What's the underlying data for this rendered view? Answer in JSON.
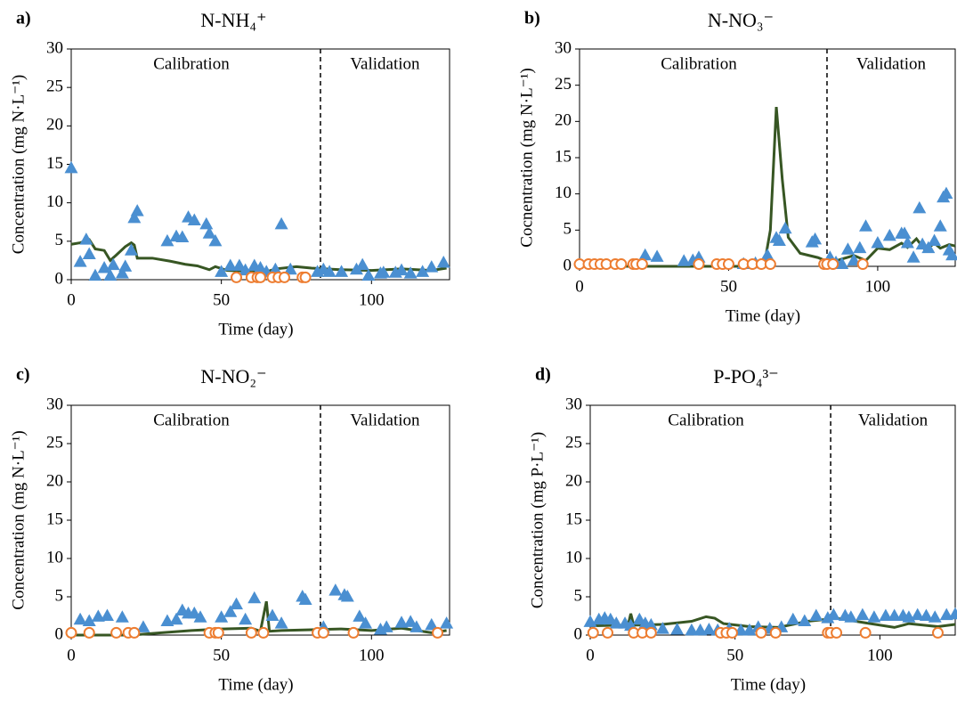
{
  "chart_data": [
    {
      "type": "scatter",
      "panel_label": "a)",
      "title": "N-NH₄⁺",
      "x_label": "Time (day)",
      "y_label": "Concentration (mg N·L⁻¹)",
      "annotations": [
        "Calibration",
        "Validation"
      ],
      "divider_x": 83,
      "xlim": [
        0,
        126
      ],
      "ylim": [
        0,
        30
      ],
      "xticks": [
        0,
        50,
        100
      ],
      "yticks": [
        0,
        5,
        10,
        15,
        20,
        25,
        30
      ],
      "series": [
        {
          "style": "line",
          "color": "#375623",
          "x": [
            0,
            3,
            6,
            8,
            11,
            13,
            15,
            18,
            20,
            21,
            22,
            27,
            33,
            38,
            42,
            46,
            48,
            52,
            60,
            64,
            68,
            75,
            80,
            90,
            100,
            110,
            120,
            125
          ],
          "values": [
            4.6,
            4.8,
            5.2,
            4.0,
            3.8,
            2.5,
            3.2,
            4.3,
            4.8,
            4.5,
            2.8,
            2.8,
            2.4,
            2.0,
            1.8,
            1.3,
            1.7,
            1.2,
            1.1,
            0.9,
            1.4,
            1.7,
            1.5,
            1.3,
            1.2,
            1.4,
            1.2,
            1.5
          ]
        },
        {
          "style": "triangle",
          "color": "#4a8fd1",
          "x": [
            0,
            3,
            5,
            6,
            8,
            11,
            13,
            14,
            17,
            18,
            20,
            21,
            22,
            32,
            35,
            37,
            39,
            41,
            45,
            46,
            48,
            50,
            53,
            56,
            58,
            61,
            63,
            65,
            68,
            70,
            73,
            82,
            84,
            86,
            90,
            95,
            97,
            99,
            103,
            104,
            108,
            110,
            113,
            117,
            120,
            124
          ],
          "values": [
            14.5,
            2.3,
            5.2,
            3.3,
            0.5,
            1.5,
            0.5,
            1.9,
            0.8,
            1.7,
            3.8,
            8,
            8.9,
            5,
            5.6,
            5.5,
            8.1,
            7.7,
            7.2,
            6,
            5,
            1.0,
            1.8,
            1.8,
            1.2,
            1.8,
            1.5,
            1.0,
            1.3,
            7.2,
            1.3,
            1.0,
            1.3,
            1.0,
            1.0,
            1.3,
            1.9,
            0.5,
            0.8,
            0.9,
            0.9,
            1.2,
            0.8,
            1.0,
            1.6,
            2.2
          ]
        },
        {
          "style": "circle",
          "color": "#ed7d31",
          "x": [
            55,
            60,
            62,
            63,
            67,
            69,
            71,
            77,
            78
          ],
          "values": [
            0.3,
            0.3,
            0.3,
            0.3,
            0.3,
            0.3,
            0.3,
            0.3,
            0.3
          ]
        }
      ]
    },
    {
      "type": "scatter",
      "panel_label": "b)",
      "title": "N-NO₃⁻",
      "x_label": "Time (day)",
      "y_label": "Cocnentration (mg N·L⁻¹)",
      "annotations": [
        "Calibration",
        "Validation"
      ],
      "divider_x": 83,
      "xlim": [
        0,
        126
      ],
      "ylim": [
        0,
        30
      ],
      "xticks": [
        0,
        50,
        100
      ],
      "yticks": [
        0,
        5,
        10,
        15,
        20,
        25,
        30
      ],
      "series": [
        {
          "style": "line",
          "color": "#375623",
          "x": [
            0,
            20,
            40,
            55,
            60,
            62,
            64,
            66,
            68,
            70,
            74,
            80,
            84,
            88,
            92,
            96,
            100,
            104,
            108,
            110,
            113,
            116,
            119,
            121,
            124,
            126
          ],
          "values": [
            0,
            0,
            0,
            0,
            0.2,
            0.3,
            5,
            22,
            12,
            4,
            1.8,
            1.2,
            0.5,
            1.0,
            1.5,
            0.8,
            2.5,
            2.3,
            3.2,
            2.6,
            3.8,
            2.2,
            3.2,
            2.5,
            3.0,
            2.8
          ]
        },
        {
          "style": "triangle",
          "color": "#4a8fd1",
          "x": [
            22,
            26,
            35,
            38,
            40,
            55,
            59,
            63,
            66,
            67,
            69,
            78,
            79,
            84,
            86,
            88,
            90,
            92,
            94,
            96,
            100,
            104,
            108,
            109,
            110,
            112,
            114,
            115,
            117,
            119,
            121,
            122,
            123,
            124,
            125
          ],
          "values": [
            1.5,
            1.3,
            0.7,
            0.8,
            1.2,
            0.3,
            0.4,
            1.5,
            3.9,
            3.5,
            5.2,
            3.3,
            3.7,
            1.2,
            0.5,
            0.3,
            2.3,
            0.8,
            2.5,
            5.5,
            3.2,
            4.2,
            4.5,
            4.5,
            3.2,
            1.2,
            8,
            3,
            2.5,
            3.5,
            5.5,
            9.5,
            10,
            2.2,
            1.5
          ]
        },
        {
          "style": "circle",
          "color": "#ed7d31",
          "x": [
            0,
            3,
            5,
            7,
            9,
            12,
            14,
            18,
            19,
            21,
            40,
            46,
            48,
            50,
            55,
            58,
            61,
            64,
            82,
            83,
            85,
            95
          ],
          "values": [
            0.3,
            0.3,
            0.3,
            0.3,
            0.3,
            0.3,
            0.3,
            0.3,
            0.3,
            0.3,
            0.3,
            0.3,
            0.3,
            0.3,
            0.3,
            0.3,
            0.3,
            0.3,
            0.3,
            0.3,
            0.3,
            0.3
          ]
        }
      ]
    },
    {
      "type": "scatter",
      "panel_label": "c)",
      "title": "N-NO₂⁻",
      "x_label": "Time (day)",
      "y_label": "Concentration (mg N·L⁻¹)",
      "annotations": [
        "Calibration",
        "Validation"
      ],
      "divider_x": 83,
      "xlim": [
        0,
        126
      ],
      "ylim": [
        0,
        30
      ],
      "xticks": [
        0,
        50,
        100
      ],
      "yticks": [
        0,
        5,
        10,
        15,
        20,
        25,
        30
      ],
      "series": [
        {
          "style": "line",
          "color": "#375623",
          "x": [
            0,
            20,
            30,
            40,
            50,
            60,
            63,
            65,
            66,
            70,
            80,
            90,
            100,
            110,
            120,
            125
          ],
          "values": [
            0,
            0,
            0.3,
            0.6,
            0.8,
            0.9,
            0.5,
            4.4,
            0.5,
            0.6,
            0.7,
            0.8,
            0.6,
            0.9,
            0.3,
            0.6
          ]
        },
        {
          "style": "triangle",
          "color": "#4a8fd1",
          "x": [
            3,
            6,
            9,
            12,
            17,
            24,
            32,
            35,
            37,
            39,
            41,
            43,
            50,
            53,
            55,
            58,
            61,
            67,
            70,
            77,
            78,
            84,
            88,
            91,
            92,
            96,
            98,
            103,
            105,
            110,
            113,
            115,
            120,
            125
          ],
          "values": [
            2,
            1.8,
            2.4,
            2.5,
            2.3,
            1.0,
            1.8,
            2.0,
            3.2,
            2.8,
            2.8,
            2.3,
            2.3,
            3.0,
            4.0,
            2.0,
            4.8,
            2.5,
            1.5,
            5.0,
            4.6,
            1.0,
            5.8,
            5.2,
            5.0,
            2.4,
            1.5,
            0.7,
            1.0,
            1.6,
            1.7,
            1.0,
            1.3,
            1.5
          ]
        },
        {
          "style": "circle",
          "color": "#ed7d31",
          "x": [
            0,
            6,
            15,
            19,
            21,
            46,
            48,
            49,
            60,
            64,
            82,
            84,
            94,
            122
          ],
          "values": [
            0.3,
            0.3,
            0.3,
            0.3,
            0.3,
            0.3,
            0.3,
            0.3,
            0.3,
            0.3,
            0.3,
            0.3,
            0.3,
            0.3
          ]
        }
      ]
    },
    {
      "type": "scatter",
      "panel_label": "d)",
      "title": "P-PO₄³⁻",
      "x_label": "Time (day)",
      "y_label": "Concentration (mg P·L⁻¹)",
      "annotations": [
        "Calibration",
        "Validation"
      ],
      "divider_x": 83,
      "xlim": [
        0,
        126
      ],
      "ylim": [
        0,
        30
      ],
      "xticks": [
        0,
        50,
        100
      ],
      "yticks": [
        0,
        5,
        10,
        15,
        20,
        25,
        30
      ],
      "series": [
        {
          "style": "line",
          "color": "#375623",
          "x": [
            0,
            10,
            13,
            14,
            15,
            25,
            35,
            40,
            43,
            46,
            55,
            65,
            75,
            85,
            95,
            105,
            110,
            120,
            126
          ],
          "values": [
            1.2,
            1.3,
            1.2,
            2.8,
            1.3,
            1.4,
            1.8,
            2.4,
            2.2,
            1.5,
            1.1,
            1.0,
            1.8,
            2.2,
            1.6,
            1.0,
            1.5,
            1.1,
            1.4
          ]
        },
        {
          "style": "triangle",
          "color": "#4a8fd1",
          "x": [
            0,
            3,
            5,
            7,
            9,
            12,
            14,
            17,
            19,
            21,
            25,
            30,
            35,
            38,
            41,
            44,
            48,
            52,
            55,
            58,
            62,
            66,
            70,
            74,
            78,
            82,
            84,
            88,
            90,
            94,
            98,
            102,
            105,
            108,
            110,
            113,
            116,
            119,
            123,
            126
          ],
          "values": [
            1.7,
            2,
            2.2,
            2,
            1.5,
            1.5,
            1.2,
            2,
            1.5,
            1.3,
            0.8,
            0.7,
            0.6,
            0.6,
            0.7,
            0.6,
            0.8,
            0.6,
            0.6,
            1.0,
            0.8,
            1.0,
            2,
            1.8,
            2.5,
            2.2,
            2.6,
            2.5,
            2.3,
            2.6,
            2.3,
            2.5,
            2.5,
            2.5,
            2.3,
            2.6,
            2.5,
            2.3,
            2.6,
            2.7
          ]
        },
        {
          "style": "circle",
          "color": "#ed7d31",
          "x": [
            1,
            6,
            15,
            18,
            21,
            45,
            47,
            49,
            59,
            64,
            82,
            83,
            85,
            95,
            120
          ],
          "values": [
            0.3,
            0.3,
            0.3,
            0.3,
            0.3,
            0.3,
            0.3,
            0.3,
            0.3,
            0.3,
            0.3,
            0.3,
            0.3,
            0.3,
            0.3
          ]
        }
      ]
    }
  ]
}
